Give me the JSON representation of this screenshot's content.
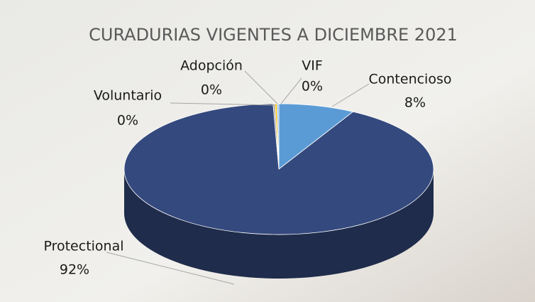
{
  "chart_data": {
    "type": "pie3d",
    "title": "CURADURIAS VIGENTES A DICIEMBRE 2021",
    "categories": [
      "Contencioso",
      "Protectional",
      "Voluntario",
      "Adopción",
      "VIF"
    ],
    "values": [
      8,
      92,
      0.2,
      0.2,
      0.2
    ],
    "value_labels": [
      "8%",
      "92%",
      "0%",
      "0%",
      "0%"
    ],
    "colors": [
      "#5b9bd5",
      "#34497d",
      "#a5a5a5",
      "#ffc000",
      "#9dc3e6"
    ]
  }
}
